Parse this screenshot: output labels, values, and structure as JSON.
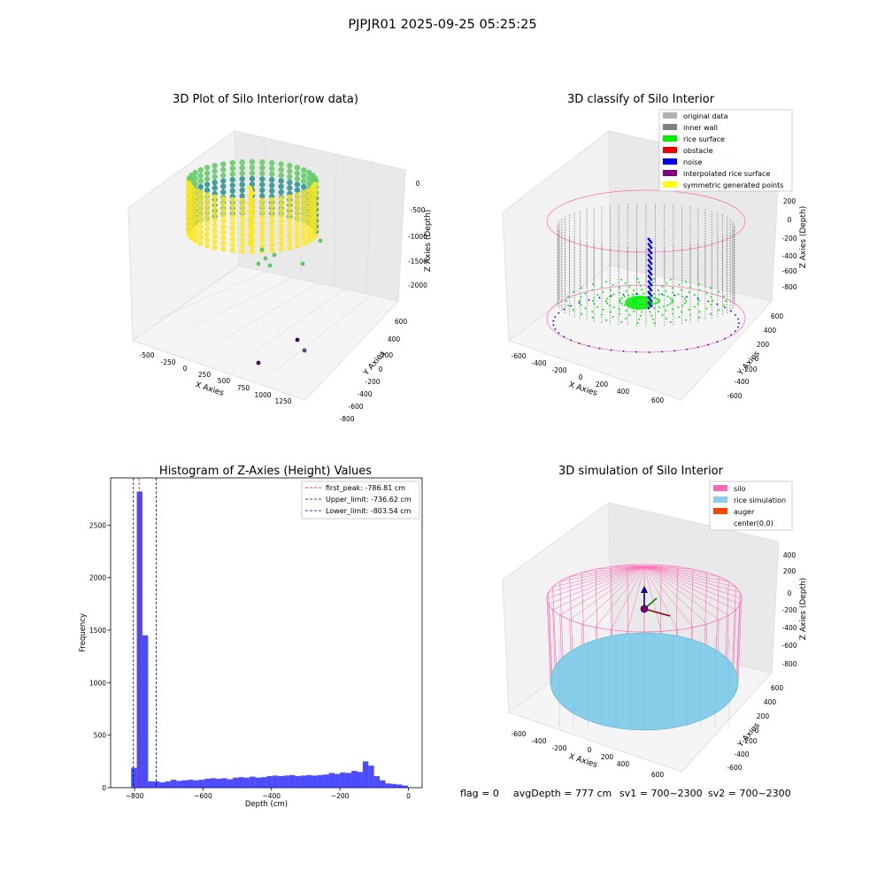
{
  "figure": {
    "suptitle": "PJPJR01 2025-09-25 05:25:25",
    "status_line": {
      "flag": "flag = 0",
      "avg_depth": "avgDepth = 777 cm",
      "sv1": "sv1 = 700~2300",
      "sv2": "sv2 = 700~2300"
    }
  },
  "chart_data": [
    {
      "type": "scatter",
      "title": "3D Plot of Silo Interior(row data)",
      "xlabel": "X Axies",
      "ylabel": "Y Axies",
      "zlabel": "Z Axies (Depth)",
      "x_ticks": [
        "-500",
        "-250",
        "0",
        "250",
        "500",
        "750",
        "1000",
        "1250"
      ],
      "y_ticks": [
        "600",
        "400",
        "200",
        "0",
        "-200",
        "-400",
        "-600",
        "-800"
      ],
      "z_ticks": [
        "0",
        "-500",
        "-1000",
        "-1500",
        "-2000"
      ],
      "xlim": [
        -600,
        1350
      ],
      "ylim": [
        -850,
        700
      ],
      "zlim": [
        -2200,
        0
      ],
      "colormap": [
        "#440154",
        "#3b528b",
        "#21918c",
        "#5ec962",
        "#fde725"
      ]
    },
    {
      "type": "scatter",
      "title": "3D classify of Silo Interior",
      "xlabel": "X Axies",
      "ylabel": "Y Axies",
      "zlabel": "Z Axies (Depth)",
      "x_ticks": [
        "-600",
        "-400",
        "-200",
        "0",
        "200",
        "400",
        "600"
      ],
      "y_ticks": [
        "600",
        "400",
        "200",
        "0",
        "-200",
        "-400",
        "-600"
      ],
      "z_ticks": [
        "200",
        "0",
        "-200",
        "-400",
        "-600",
        "-800"
      ],
      "legend_position": "top-right",
      "legend": [
        {
          "label": "original data",
          "color": "#b0b0b0"
        },
        {
          "label": "inner wall",
          "color": "#808080"
        },
        {
          "label": "rice surface",
          "color": "#00ee00"
        },
        {
          "label": "obstacle",
          "color": "#ee0000"
        },
        {
          "label": "noise",
          "color": "#0000ee"
        },
        {
          "label": "interpolated rice surface",
          "color": "#800080"
        },
        {
          "label": "symmetric generated points",
          "color": "#ffff00"
        }
      ],
      "silo_outline_color": "#ff69b4"
    },
    {
      "type": "bar",
      "title": "Histogram of Z-Axies (Height) Values",
      "xlabel": "Depth (cm)",
      "ylabel": "Frequency",
      "xlim": [
        -870,
        40
      ],
      "ylim": [
        0,
        2950
      ],
      "x_ticks": [
        -800,
        -600,
        -400,
        -200,
        0
      ],
      "y_ticks": [
        0,
        500,
        1000,
        1500,
        2000,
        2500
      ],
      "bar_color": "#0000ff",
      "bin_width": 16.5,
      "bins": [
        [
          -810,
          190
        ],
        [
          -793.5,
          2820
        ],
        [
          -777,
          1450
        ],
        [
          -760.5,
          60
        ],
        [
          -744,
          60
        ],
        [
          -727.5,
          50
        ],
        [
          -711,
          60
        ],
        [
          -694.5,
          75
        ],
        [
          -678,
          65
        ],
        [
          -661.5,
          70
        ],
        [
          -645,
          75
        ],
        [
          -628.5,
          70
        ],
        [
          -612,
          75
        ],
        [
          -595.5,
          85
        ],
        [
          -579,
          90
        ],
        [
          -562.5,
          85
        ],
        [
          -546,
          90
        ],
        [
          -529.5,
          80
        ],
        [
          -513,
          95
        ],
        [
          -496.5,
          100
        ],
        [
          -480,
          95
        ],
        [
          -463.5,
          105
        ],
        [
          -447,
          95
        ],
        [
          -430.5,
          100
        ],
        [
          -414,
          110
        ],
        [
          -397.5,
          115
        ],
        [
          -381,
          110
        ],
        [
          -364.5,
          115
        ],
        [
          -348,
          120
        ],
        [
          -331.5,
          110
        ],
        [
          -315,
          115
        ],
        [
          -298.5,
          120
        ],
        [
          -282,
          115
        ],
        [
          -265.5,
          120
        ],
        [
          -249,
          125
        ],
        [
          -232.5,
          140
        ],
        [
          -216,
          130
        ],
        [
          -199.5,
          145
        ],
        [
          -183,
          140
        ],
        [
          -166.5,
          160
        ],
        [
          -150,
          150
        ],
        [
          -133.5,
          250
        ],
        [
          -117,
          210
        ],
        [
          -100.5,
          110
        ],
        [
          -84,
          70
        ],
        [
          -67.5,
          40
        ],
        [
          -51,
          35
        ],
        [
          -34.5,
          30
        ],
        [
          -18,
          20
        ]
      ],
      "lines": [
        {
          "label": "first_peak: -786.81 cm",
          "value": -786.81,
          "color": "#ff0000"
        },
        {
          "label": "Upper_limit: -736.62 cm",
          "value": -736.62,
          "color": "#00008b"
        },
        {
          "label": "Lower_limit: -803.54 cm",
          "value": -803.54,
          "color": "#00008b"
        }
      ],
      "legend_position": "top-right"
    },
    {
      "type": "scatter",
      "title": "3D simulation of Silo Interior",
      "xlabel": "X Axies",
      "ylabel": "Y Axies",
      "zlabel": "Z Axies (Depth)",
      "x_ticks": [
        "-600",
        "-400",
        "-200",
        "0",
        "200",
        "400",
        "600"
      ],
      "y_ticks": [
        "600",
        "400",
        "200",
        "0",
        "-200",
        "-400",
        "-600"
      ],
      "z_ticks": [
        "400",
        "200",
        "0",
        "-200",
        "-400",
        "-600",
        "-800"
      ],
      "legend_position": "top-right",
      "legend": [
        {
          "label": "silo",
          "color": "#ff69b4"
        },
        {
          "label": "rice simulation",
          "color": "#87ceeb"
        },
        {
          "label": "auger",
          "color": "#ff4500"
        },
        {
          "label": "center(0,0)",
          "color": "none"
        }
      ]
    }
  ]
}
